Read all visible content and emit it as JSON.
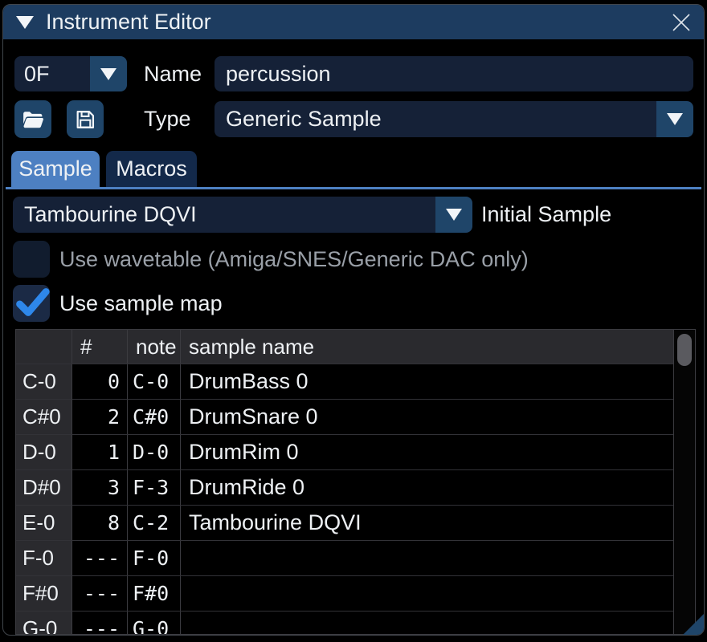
{
  "window": {
    "title": "Instrument Editor",
    "icons": {
      "collapse": "triangle-down-icon",
      "close": "close-icon"
    }
  },
  "header": {
    "instrument_id": "0F",
    "name_label": "Name",
    "name_value": "percussion",
    "type_label": "Type",
    "type_value": "Generic Sample",
    "open_button_icon": "open-folder-icon",
    "save_button_icon": "floppy-disk-icon"
  },
  "tabs": [
    {
      "label": "Sample",
      "active": true
    },
    {
      "label": "Macros",
      "active": false
    }
  ],
  "sample_tab": {
    "initial_sample_value": "Tambourine DQVI",
    "initial_sample_label": "Initial Sample",
    "use_wavetable": {
      "label": "Use wavetable (Amiga/SNES/Generic DAC only)",
      "checked": false,
      "enabled": false
    },
    "use_sample_map": {
      "label": "Use sample map",
      "checked": true
    }
  },
  "sample_map_table": {
    "columns": [
      "",
      "#",
      "note",
      "sample name"
    ],
    "rows": [
      {
        "key": "C-0",
        "index": "0",
        "note": "C-0",
        "sample": "DrumBass 0"
      },
      {
        "key": "C#0",
        "index": "2",
        "note": "C#0",
        "sample": "DrumSnare 0"
      },
      {
        "key": "D-0",
        "index": "1",
        "note": "D-0",
        "sample": "DrumRim 0"
      },
      {
        "key": "D#0",
        "index": "3",
        "note": "F-3",
        "sample": "DrumRide 0"
      },
      {
        "key": "E-0",
        "index": "8",
        "note": "C-2",
        "sample": "Tambourine DQVI"
      },
      {
        "key": "F-0",
        "index": "---",
        "note": "F-0",
        "sample": ""
      },
      {
        "key": "F#0",
        "index": "---",
        "note": "F#0",
        "sample": ""
      },
      {
        "key": "G-0",
        "index": "---",
        "note": "G-0",
        "sample": ""
      }
    ]
  },
  "colors": {
    "titlebar": "#1d3c60",
    "field_bg": "#152137",
    "button_bg": "#1f4569",
    "tab_active": "#4d80c2",
    "tab_inactive": "#13294a",
    "check_blue": "#2e87ea",
    "text": "#eef1f4",
    "disabled_text": "#9aa0a8",
    "table_header_bg": "#2a2a2e"
  }
}
